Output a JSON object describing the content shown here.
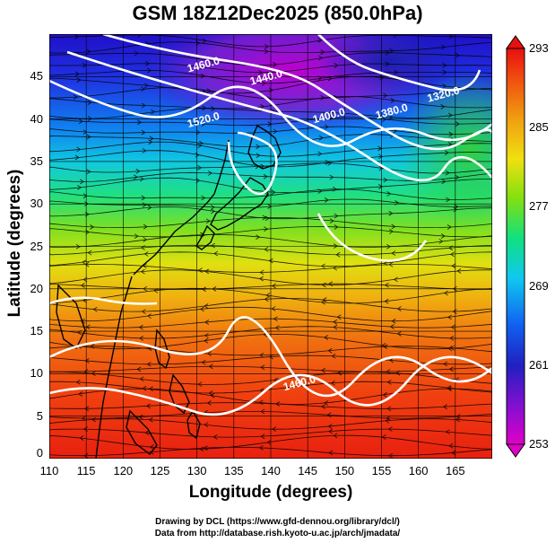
{
  "title": "GSM 18Z12Dec2025 (850.0hPa)",
  "xlabel": "Longitude (degrees)",
  "ylabel": "Latitude (degrees)",
  "credits": [
    "Drawing by DCL (https://www.gfd-dennou.org/library/dcl/)",
    "Data from http://database.rish.kyoto-u.ac.jp/arch/jmadata/"
  ],
  "map": {
    "lon_range": [
      110,
      170
    ],
    "lat_range": [
      0,
      50
    ],
    "x_ticks": [
      "110",
      "115",
      "120",
      "125",
      "130",
      "135",
      "140",
      "145",
      "150",
      "155",
      "160",
      "165"
    ],
    "y_ticks": [
      "0",
      "5",
      "10",
      "15",
      "20",
      "25",
      "30",
      "35",
      "40",
      "45"
    ],
    "grid": true,
    "fill_variable_range": [
      253,
      293
    ],
    "colorbar_ticks": [
      "253",
      "261",
      "269",
      "277",
      "285",
      "293"
    ],
    "colorbar_palette": [
      "#e000c8",
      "#3010c8",
      "#1058f0",
      "#10c8f0",
      "#10e070",
      "#a0e010",
      "#f0e010",
      "#f08010",
      "#f03010",
      "#e01010"
    ],
    "contour_labels": [
      {
        "text": "1460.0",
        "lon": 131.0,
        "lat": 46.0
      },
      {
        "text": "1440.0",
        "lon": 139.5,
        "lat": 44.5
      },
      {
        "text": "1520.0",
        "lon": 131.0,
        "lat": 39.5
      },
      {
        "text": "1400.0",
        "lon": 148.0,
        "lat": 40.0
      },
      {
        "text": "1380.0",
        "lon": 156.5,
        "lat": 40.5
      },
      {
        "text": "1320.0",
        "lon": 163.5,
        "lat": 42.5
      },
      {
        "text": "1460.0",
        "lon": 144.0,
        "lat": 8.5
      }
    ]
  }
}
